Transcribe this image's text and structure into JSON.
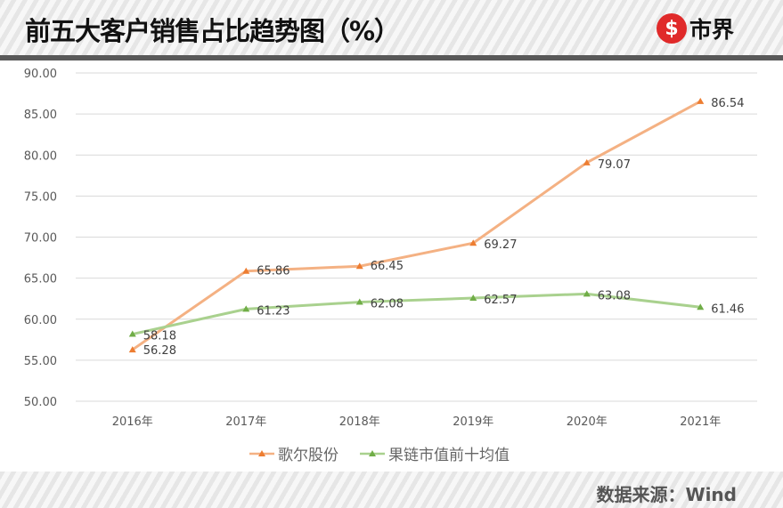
{
  "header": {
    "title": "前五大客户销售占比趋势图（%）",
    "logo_text": "市界",
    "logo_symbol": "$"
  },
  "footer": {
    "source": "数据来源：Wind"
  },
  "colors": {
    "series1": "#f4b183",
    "series1_marker": "#ed7d31",
    "series2": "#a9d18e",
    "series2_marker": "#70ad47"
  },
  "chart_data": {
    "type": "line",
    "categories": [
      "2016年",
      "2017年",
      "2018年",
      "2019年",
      "2020年",
      "2021年"
    ],
    "ylim": [
      50,
      90
    ],
    "yticks": [
      "50.00",
      "55.00",
      "60.00",
      "65.00",
      "70.00",
      "75.00",
      "80.00",
      "85.00",
      "90.00"
    ],
    "grid": true,
    "legend": "bottom",
    "series": [
      {
        "name": "歌尔股份",
        "values": [
          56.28,
          65.86,
          66.45,
          69.27,
          79.07,
          86.54
        ],
        "labels": [
          "56.28",
          "65.86",
          "66.45",
          "69.27",
          "79.07",
          "86.54"
        ]
      },
      {
        "name": "果链市值前十均值",
        "values": [
          58.18,
          61.23,
          62.08,
          62.57,
          63.08,
          61.46
        ],
        "labels": [
          "58.18",
          "61.23",
          "62.08",
          "62.57",
          "63.08",
          "61.46"
        ]
      }
    ]
  }
}
